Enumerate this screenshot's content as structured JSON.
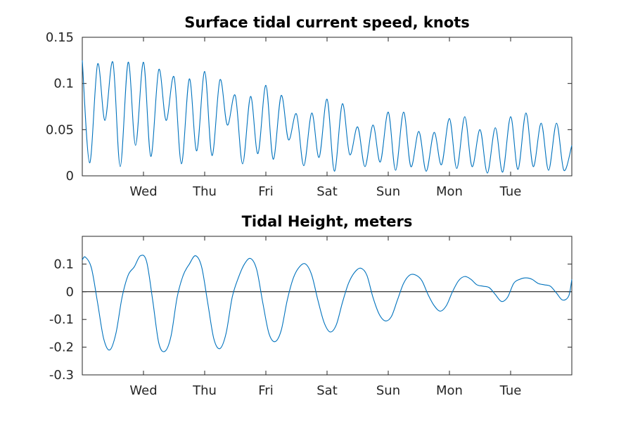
{
  "chart_data": [
    {
      "type": "line",
      "title": "Surface tidal current speed, knots",
      "xlabel": "",
      "ylabel": "",
      "xlim": [
        0,
        8
      ],
      "ylim": [
        0,
        0.15
      ],
      "yticks": [
        "0",
        "0.05",
        "0.1",
        "0.15"
      ],
      "ytick_values": [
        0,
        0.05,
        0.1,
        0.15
      ],
      "xtick_labels": [
        "Wed",
        "Thu",
        "Fri",
        "Sat",
        "Sun",
        "Mon",
        "Tue"
      ],
      "xtick_values": [
        1,
        2,
        3,
        4,
        5,
        6,
        7
      ],
      "grid": false,
      "color": "#0072BD",
      "series": [
        {
          "x": [
            0.0,
            0.12,
            0.25,
            0.37,
            0.5,
            0.62,
            0.75,
            0.87,
            1.0,
            1.12,
            1.25,
            1.37,
            1.5,
            1.62,
            1.75,
            1.87,
            2.0,
            2.12,
            2.25,
            2.37,
            2.5,
            2.62,
            2.75,
            2.87,
            3.0,
            3.12,
            3.25,
            3.37,
            3.5,
            3.62,
            3.75,
            3.87,
            4.0,
            4.12,
            4.25,
            4.37,
            4.5,
            4.62,
            4.75,
            4.87,
            5.0,
            5.12,
            5.25,
            5.37,
            5.5,
            5.62,
            5.75,
            5.87,
            6.0,
            6.12,
            6.25,
            6.37,
            6.5,
            6.62,
            6.75,
            6.87,
            7.0,
            7.12,
            7.25,
            7.37,
            7.5,
            7.62,
            7.75,
            7.87,
            8.0
          ],
          "values": [
            0.125,
            0.014,
            0.121,
            0.06,
            0.123,
            0.01,
            0.123,
            0.033,
            0.123,
            0.021,
            0.115,
            0.06,
            0.107,
            0.013,
            0.105,
            0.027,
            0.113,
            0.022,
            0.104,
            0.055,
            0.087,
            0.013,
            0.086,
            0.024,
            0.098,
            0.018,
            0.087,
            0.039,
            0.067,
            0.011,
            0.068,
            0.02,
            0.083,
            0.005,
            0.078,
            0.023,
            0.053,
            0.01,
            0.055,
            0.015,
            0.069,
            0.006,
            0.069,
            0.01,
            0.048,
            0.005,
            0.047,
            0.012,
            0.062,
            0.008,
            0.064,
            0.01,
            0.05,
            0.003,
            0.052,
            0.004,
            0.064,
            0.007,
            0.068,
            0.01,
            0.057,
            0.006,
            0.057,
            0.006,
            0.033
          ]
        }
      ]
    },
    {
      "type": "line",
      "title": "Tidal Height, meters",
      "xlabel": "",
      "ylabel": "",
      "xlim": [
        0,
        8
      ],
      "ylim": [
        -0.3,
        0.2
      ],
      "yticks": [
        "-0.3",
        "-0.2",
        "-0.1",
        "0",
        "0.1"
      ],
      "ytick_values": [
        -0.3,
        -0.2,
        -0.1,
        0,
        0.1
      ],
      "xtick_labels": [
        "Wed",
        "Thu",
        "Fri",
        "Sat",
        "Sun",
        "Mon",
        "Tue"
      ],
      "xtick_values": [
        1,
        2,
        3,
        4,
        5,
        6,
        7
      ],
      "grid": false,
      "zero_line": true,
      "color": "#0072BD",
      "series": [
        {
          "x": [
            0.0,
            0.05,
            0.15,
            0.25,
            0.35,
            0.45,
            0.55,
            0.65,
            0.75,
            0.85,
            0.95,
            1.05,
            1.15,
            1.25,
            1.35,
            1.45,
            1.55,
            1.65,
            1.75,
            1.85,
            1.95,
            2.05,
            2.15,
            2.25,
            2.35,
            2.45,
            2.55,
            2.65,
            2.75,
            2.85,
            2.95,
            3.05,
            3.15,
            3.25,
            3.35,
            3.45,
            3.55,
            3.65,
            3.75,
            3.85,
            3.95,
            4.05,
            4.15,
            4.25,
            4.35,
            4.45,
            4.55,
            4.65,
            4.75,
            4.85,
            4.95,
            5.05,
            5.15,
            5.25,
            5.35,
            5.45,
            5.55,
            5.65,
            5.75,
            5.85,
            5.95,
            6.05,
            6.15,
            6.25,
            6.35,
            6.45,
            6.55,
            6.65,
            6.75,
            6.85,
            6.95,
            7.05,
            7.15,
            7.25,
            7.35,
            7.45,
            7.55,
            7.65,
            7.75,
            7.85,
            7.95,
            8.0
          ],
          "values": [
            0.115,
            0.125,
            0.085,
            -0.04,
            -0.17,
            -0.21,
            -0.15,
            -0.02,
            0.06,
            0.09,
            0.13,
            0.11,
            -0.03,
            -0.185,
            -0.215,
            -0.16,
            -0.02,
            0.06,
            0.1,
            0.13,
            0.09,
            -0.04,
            -0.17,
            -0.205,
            -0.15,
            -0.02,
            0.05,
            0.1,
            0.12,
            0.08,
            -0.04,
            -0.15,
            -0.18,
            -0.14,
            -0.03,
            0.05,
            0.09,
            0.1,
            0.06,
            -0.03,
            -0.11,
            -0.145,
            -0.12,
            -0.04,
            0.03,
            0.07,
            0.085,
            0.06,
            -0.02,
            -0.08,
            -0.105,
            -0.09,
            -0.03,
            0.03,
            0.06,
            0.06,
            0.04,
            -0.01,
            -0.05,
            -0.07,
            -0.05,
            0.0,
            0.04,
            0.055,
            0.045,
            0.025,
            0.02,
            0.015,
            -0.01,
            -0.035,
            -0.02,
            0.03,
            0.045,
            0.05,
            0.045,
            0.03,
            0.025,
            0.02,
            -0.005,
            -0.03,
            -0.015,
            0.045
          ]
        }
      ]
    }
  ]
}
